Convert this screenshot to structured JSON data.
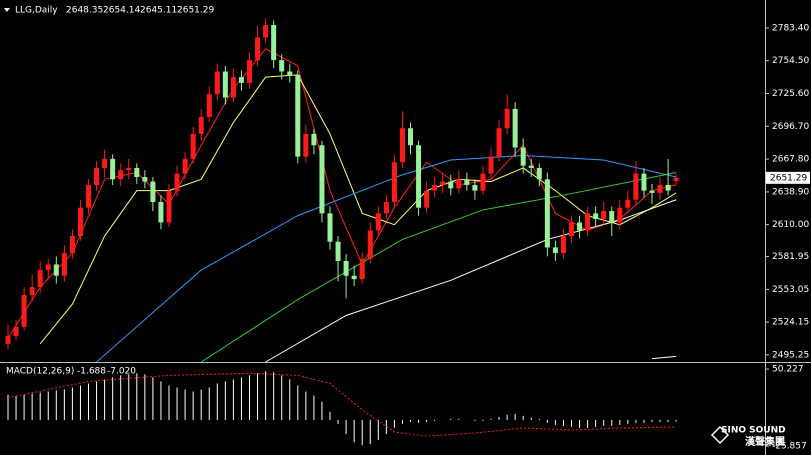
{
  "chart_data": {
    "type": "candlestick",
    "symbol": "LLG,Daily",
    "bull_color": "#ff1a1a",
    "bear_color": "#98f098",
    "ylim": [
      2489,
      2808
    ],
    "yticks": [
      {
        "value": 2783.4,
        "label": "2783.40"
      },
      {
        "value": 2754.5,
        "label": "2754.50"
      },
      {
        "value": 2725.6,
        "label": "2725.60"
      },
      {
        "value": 2696.7,
        "label": "2696.70"
      },
      {
        "value": 2667.8,
        "label": "2667.80"
      },
      {
        "value": 2638.9,
        "label": "2638.90"
      },
      {
        "value": 2610.0,
        "label": "2610.00"
      },
      {
        "value": 2581.95,
        "label": "2581.95"
      },
      {
        "value": 2553.05,
        "label": "2553.05"
      },
      {
        "value": 2524.15,
        "label": "2524.15"
      },
      {
        "value": 2495.25,
        "label": "2495.25"
      }
    ],
    "candles": [
      [
        2505,
        2522,
        2500,
        2512
      ],
      [
        2512,
        2526,
        2508,
        2520
      ],
      [
        2520,
        2555,
        2517,
        2548
      ],
      [
        2548,
        2566,
        2542,
        2555
      ],
      [
        2555,
        2578,
        2550,
        2570
      ],
      [
        2570,
        2580,
        2562,
        2575
      ],
      [
        2575,
        2582,
        2558,
        2565
      ],
      [
        2565,
        2592,
        2560,
        2585
      ],
      [
        2585,
        2606,
        2580,
        2600
      ],
      [
        2600,
        2632,
        2596,
        2625
      ],
      [
        2625,
        2650,
        2620,
        2645
      ],
      [
        2645,
        2666,
        2640,
        2660
      ],
      [
        2660,
        2676,
        2652,
        2668
      ],
      [
        2668,
        2672,
        2645,
        2650
      ],
      [
        2650,
        2664,
        2644,
        2658
      ],
      [
        2658,
        2668,
        2650,
        2660
      ],
      [
        2660,
        2664,
        2646,
        2652
      ],
      [
        2652,
        2658,
        2642,
        2648
      ],
      [
        2648,
        2652,
        2622,
        2630
      ],
      [
        2630,
        2636,
        2606,
        2612
      ],
      [
        2612,
        2646,
        2608,
        2640
      ],
      [
        2640,
        2662,
        2635,
        2655
      ],
      [
        2655,
        2674,
        2650,
        2668
      ],
      [
        2668,
        2696,
        2664,
        2690
      ],
      [
        2690,
        2712,
        2684,
        2705
      ],
      [
        2705,
        2732,
        2700,
        2725
      ],
      [
        2725,
        2752,
        2720,
        2745
      ],
      [
        2745,
        2750,
        2716,
        2722
      ],
      [
        2722,
        2748,
        2718,
        2740
      ],
      [
        2740,
        2746,
        2728,
        2735
      ],
      [
        2735,
        2762,
        2730,
        2755
      ],
      [
        2755,
        2785,
        2750,
        2775
      ],
      [
        2775,
        2792,
        2770,
        2786
      ],
      [
        2786,
        2790,
        2748,
        2755
      ],
      [
        2755,
        2760,
        2738,
        2745
      ],
      [
        2745,
        2752,
        2735,
        2742
      ],
      [
        2742,
        2746,
        2664,
        2670
      ],
      [
        2670,
        2698,
        2665,
        2690
      ],
      [
        2690,
        2694,
        2672,
        2680
      ],
      [
        2680,
        2684,
        2612,
        2620
      ],
      [
        2620,
        2626,
        2588,
        2595
      ],
      [
        2595,
        2600,
        2560,
        2578
      ],
      [
        2578,
        2584,
        2545,
        2565
      ],
      [
        2565,
        2574,
        2556,
        2562
      ],
      [
        2562,
        2586,
        2558,
        2580
      ],
      [
        2580,
        2612,
        2576,
        2605
      ],
      [
        2605,
        2626,
        2600,
        2620
      ],
      [
        2620,
        2636,
        2615,
        2630
      ],
      [
        2630,
        2672,
        2626,
        2665
      ],
      [
        2665,
        2710,
        2660,
        2695
      ],
      [
        2695,
        2700,
        2672,
        2680
      ],
      [
        2680,
        2684,
        2618,
        2625
      ],
      [
        2625,
        2648,
        2620,
        2640
      ],
      [
        2640,
        2652,
        2634,
        2645
      ],
      [
        2645,
        2656,
        2638,
        2648
      ],
      [
        2648,
        2654,
        2636,
        2642
      ],
      [
        2642,
        2658,
        2638,
        2650
      ],
      [
        2650,
        2656,
        2640,
        2645
      ],
      [
        2645,
        2650,
        2632,
        2640
      ],
      [
        2640,
        2662,
        2636,
        2655
      ],
      [
        2655,
        2678,
        2650,
        2670
      ],
      [
        2670,
        2702,
        2666,
        2695
      ],
      [
        2695,
        2725,
        2690,
        2712
      ],
      [
        2712,
        2718,
        2670,
        2678
      ],
      [
        2678,
        2686,
        2655,
        2662
      ],
      [
        2662,
        2668,
        2652,
        2660
      ],
      [
        2660,
        2664,
        2644,
        2650
      ],
      [
        2650,
        2656,
        2582,
        2590
      ],
      [
        2590,
        2596,
        2578,
        2585
      ],
      [
        2585,
        2606,
        2580,
        2600
      ],
      [
        2600,
        2618,
        2594,
        2612
      ],
      [
        2612,
        2618,
        2598,
        2605
      ],
      [
        2605,
        2626,
        2600,
        2620
      ],
      [
        2620,
        2626,
        2608,
        2615
      ],
      [
        2615,
        2630,
        2610,
        2622
      ],
      [
        2622,
        2626,
        2600,
        2612
      ],
      [
        2612,
        2632,
        2606,
        2625
      ],
      [
        2625,
        2640,
        2620,
        2632
      ],
      [
        2632,
        2666,
        2628,
        2655
      ],
      [
        2655,
        2660,
        2634,
        2640
      ],
      [
        2640,
        2646,
        2628,
        2638
      ],
      [
        2638,
        2652,
        2632,
        2645
      ],
      [
        2645,
        2668,
        2636,
        2640
      ],
      [
        2648.35,
        2654.14,
        2645.11,
        2651.29
      ]
    ],
    "ma": [
      {
        "color": "#ff2020",
        "x": [
          0,
          4,
          8,
          12,
          16,
          20,
          24,
          28,
          32,
          36,
          40,
          44,
          48,
          52,
          56,
          60,
          64,
          68,
          72,
          76,
          80,
          83
        ],
        "values": [
          2510,
          2555,
          2585,
          2650,
          2656,
          2628,
          2680,
          2730,
          2765,
          2750,
          2640,
          2575,
          2625,
          2665,
          2645,
          2650,
          2680,
          2620,
          2605,
          2615,
          2640,
          2645
        ]
      },
      {
        "color": "#ffff66",
        "x": [
          4,
          8,
          12,
          16,
          20,
          24,
          28,
          32,
          36,
          40,
          44,
          48,
          52,
          56,
          60,
          64,
          68,
          72,
          76,
          80,
          83
        ],
        "values": [
          2505,
          2540,
          2600,
          2640,
          2640,
          2650,
          2700,
          2740,
          2742,
          2690,
          2620,
          2610,
          2640,
          2650,
          2648,
          2660,
          2640,
          2618,
          2610,
          2625,
          2638
        ]
      },
      {
        "color": "#3399ff",
        "x": [
          11,
          24,
          36,
          49,
          55,
          64,
          74,
          83
        ],
        "values": [
          2489,
          2570,
          2618,
          2654,
          2667,
          2671,
          2667,
          2652
        ]
      },
      {
        "color": "#33cc33",
        "x": [
          24,
          36,
          49,
          59,
          69,
          83
        ],
        "values": [
          2489,
          2544,
          2597,
          2623,
          2636,
          2656
        ]
      },
      {
        "color": "#ffffff",
        "x": [
          32,
          42,
          55,
          67,
          76,
          83
        ],
        "values": [
          2489,
          2530,
          2561,
          2597,
          2614,
          2632
        ]
      },
      {
        "color": "#ffffff",
        "x": [
          80,
          83
        ],
        "values": [
          2492,
          2494
        ]
      }
    ],
    "macd": {
      "title": "MACD(12,26,9)",
      "readout": [
        "-1.688",
        "-7.020"
      ],
      "ylim": [
        -34.7,
        56.2
      ],
      "yticks": [
        50.227,
        -25.857
      ],
      "histogram": [
        25,
        24,
        25,
        26,
        27,
        28,
        29,
        30,
        32,
        34,
        36,
        38,
        40,
        42,
        44,
        45,
        46,
        45,
        42,
        38,
        34,
        32,
        30,
        28,
        30,
        32,
        36,
        38,
        40,
        42,
        44,
        46,
        48,
        47,
        44,
        40,
        34,
        28,
        24,
        18,
        8,
        -4,
        -14,
        -22,
        -25,
        -24,
        -20,
        -14,
        -8,
        -4,
        -2,
        -3,
        -2,
        -1,
        0,
        1,
        1,
        0,
        -1,
        -1,
        1,
        3,
        5,
        6,
        4,
        2,
        1,
        -3,
        -5,
        -6,
        -7,
        -8,
        -8,
        -7,
        -6,
        -6,
        -5,
        -4,
        -3,
        -3,
        -2,
        -2,
        -2,
        -1.688
      ],
      "signal": {
        "color": "#ff2020",
        "x": [
          0,
          10,
          20,
          30,
          36,
          40,
          44,
          48,
          52,
          58,
          64,
          70,
          76,
          83
        ],
        "values": [
          22,
          38,
          44,
          46,
          44,
          36,
          10,
          -12,
          -16,
          -13,
          -8,
          -10,
          -8,
          -7.02
        ]
      }
    },
    "watermark": [
      "SINO SOUND",
      "漢聲集團"
    ]
  }
}
